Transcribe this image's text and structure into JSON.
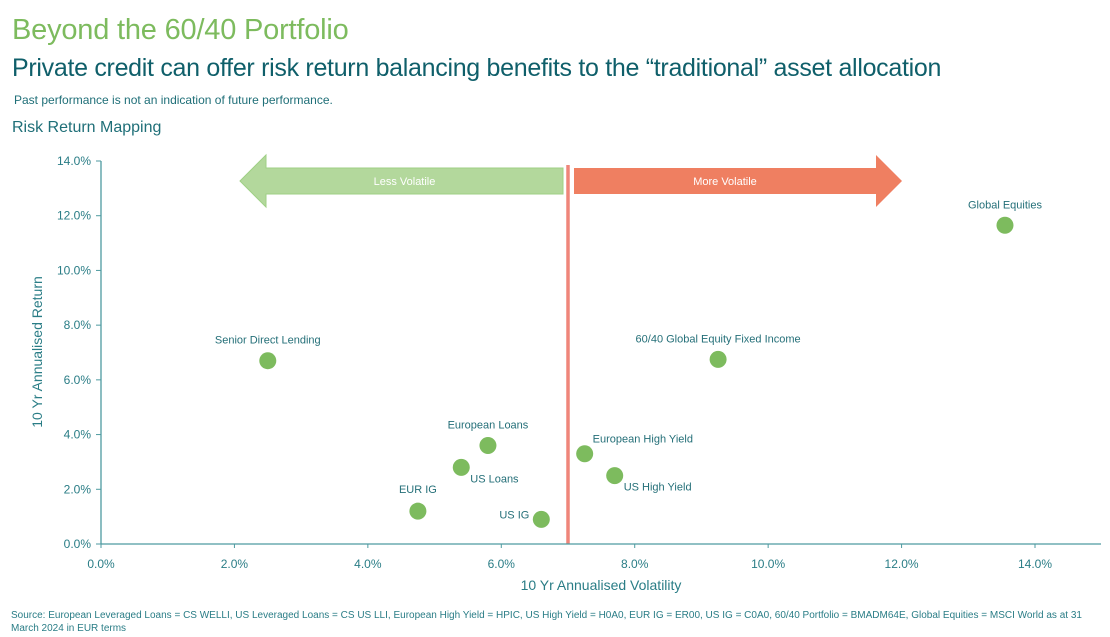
{
  "header": {
    "title": "Beyond the 60/40 Portfolio",
    "subtitle": "Private credit can offer risk return balancing benefits to the “traditional” asset allocation",
    "disclaimer": "Past performance is not an indication of future performance.",
    "chart_heading": "Risk Return Mapping"
  },
  "footer": {
    "source": "Source: European Leveraged Loans = CS WELLI, US Leveraged Loans = CS US LLI, European High Yield = HPIC, US High Yield = H0A0, EUR IG = ER00, US IG = C0A0, 60/40 Portfolio = BMADM64E, Global Equities = MSCI World as at 31 March 2024 in EUR terms"
  },
  "colors": {
    "point": "#7dbb5e",
    "less_volatile": "#b3d89c",
    "more_volatile": "#ef7f61",
    "divider": "#ef857a",
    "axis": "#4d9aa0"
  },
  "chart_data": {
    "type": "scatter",
    "title": "Risk Return Mapping",
    "xlabel": "10 Yr Annualised Volatility",
    "ylabel": "10 Yr Annualised Return",
    "xlim": [
      0,
      15
    ],
    "ylim": [
      0,
      14
    ],
    "x_ticks": [
      0,
      2,
      4,
      6,
      8,
      10,
      12,
      14
    ],
    "y_ticks": [
      0,
      2,
      4,
      6,
      8,
      10,
      12,
      14
    ],
    "x_tick_labels": [
      "0.0%",
      "2.0%",
      "4.0%",
      "6.0%",
      "8.0%",
      "10.0%",
      "12.0%",
      "14.0%"
    ],
    "y_tick_labels": [
      "0.0%",
      "2.0%",
      "4.0%",
      "6.0%",
      "8.0%",
      "10.0%",
      "12.0%",
      "14.0%"
    ],
    "grid": false,
    "legend": "none",
    "divider_x": 7.0,
    "annotations": {
      "less_volatile": "Less Volatile",
      "more_volatile": "More Volatile"
    },
    "points": [
      {
        "name": "Senior Direct Lending",
        "x": 2.5,
        "y": 6.7,
        "label_pos": "above"
      },
      {
        "name": "EUR IG",
        "x": 4.75,
        "y": 1.2,
        "label_pos": "above-left"
      },
      {
        "name": "US Loans",
        "x": 5.4,
        "y": 2.8,
        "label_pos": "below-right"
      },
      {
        "name": "European Loans",
        "x": 5.8,
        "y": 3.6,
        "label_pos": "above"
      },
      {
        "name": "US IG",
        "x": 6.6,
        "y": 0.9,
        "label_pos": "left"
      },
      {
        "name": "European High Yield",
        "x": 7.25,
        "y": 3.3,
        "label_pos": "above-right"
      },
      {
        "name": "US High Yield",
        "x": 7.7,
        "y": 2.5,
        "label_pos": "below-right"
      },
      {
        "name": "60/40 Global Equity Fixed Income",
        "x": 9.25,
        "y": 6.75,
        "label_pos": "above"
      },
      {
        "name": "Global Equities",
        "x": 13.55,
        "y": 11.65,
        "label_pos": "above"
      }
    ]
  }
}
